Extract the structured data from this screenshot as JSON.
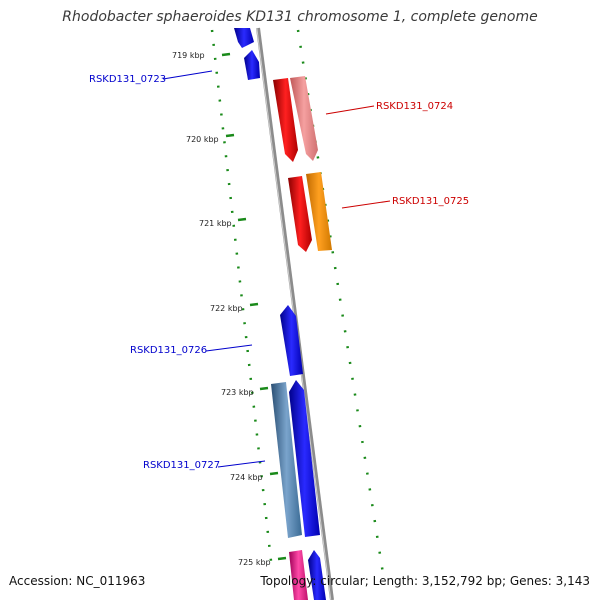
{
  "title": "Rhodobacter sphaeroides KD131 chromosome 1, complete genome",
  "footer": {
    "accession_label": "Accession:",
    "accession": "NC_011963",
    "topology_label": "Topology:",
    "topology": "circular",
    "length_label": "Length:",
    "length": "3,152,792 bp",
    "genes_label": "Genes:",
    "genes": "3,143"
  },
  "scale_ticks": [
    "719 kbp",
    "720 kbp",
    "721 kbp",
    "722 kbp",
    "723 kbp",
    "724 kbp",
    "725 kbp"
  ],
  "gene_labels": [
    {
      "name": "RSKD131_0723",
      "strand": "minus",
      "color": "#0000cc"
    },
    {
      "name": "RSKD131_0724",
      "strand": "plus",
      "color": "#cc0000"
    },
    {
      "name": "RSKD131_0725",
      "strand": "plus",
      "color": "#cc0000"
    },
    {
      "name": "RSKD131_0726",
      "strand": "minus",
      "color": "#0000cc"
    },
    {
      "name": "RSKD131_0727",
      "strand": "minus",
      "color": "#0000cc"
    }
  ],
  "colors": {
    "backbone": "#8c8c8c",
    "cds": "#0000ee",
    "rrna": "#ee0000",
    "rrna_light": "#e88888",
    "orange": "#ff9900",
    "steel": "#4a7aa6",
    "pink": "#ee2288",
    "gc_dots": "#1a8a1a"
  }
}
